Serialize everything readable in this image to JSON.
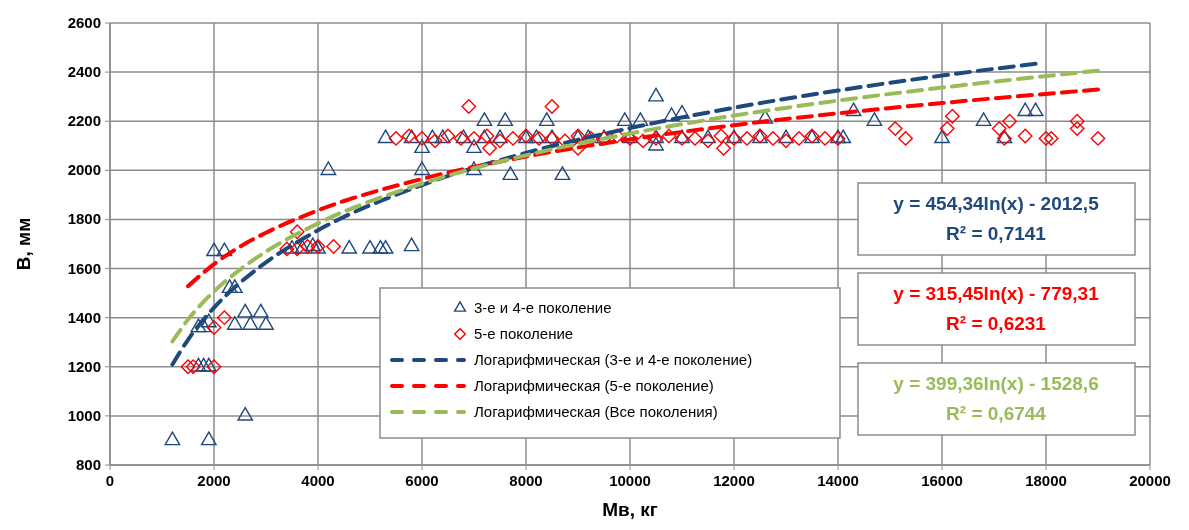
{
  "chart_data": {
    "type": "scatter",
    "xlabel": "Мв, кг",
    "ylabel": "В, мм",
    "xlim": [
      0,
      20000
    ],
    "ylim": [
      800,
      2600
    ],
    "xticks": [
      0,
      2000,
      4000,
      6000,
      8000,
      10000,
      12000,
      14000,
      16000,
      18000,
      20000
    ],
    "yticks": [
      800,
      1000,
      1200,
      1400,
      1600,
      1800,
      2000,
      2200,
      2400,
      2600
    ],
    "grid": true,
    "legend": "bottom",
    "series": [
      {
        "name": "3-е и 4-е поколение",
        "color": "#1f497d",
        "marker": "triangle",
        "x": [
          1200,
          1900,
          2600,
          1700,
          1800,
          1900,
          1700,
          1800,
          1900,
          2000,
          2200,
          2300,
          2400,
          2600,
          2900,
          2400,
          2700,
          3000,
          3500,
          3700,
          3900,
          4000,
          4200,
          4600,
          5000,
          5200,
          5300,
          5800,
          6000,
          7000,
          7700,
          8700,
          5300,
          5800,
          6000,
          6200,
          6400,
          6800,
          7000,
          7200,
          7500,
          8000,
          8200,
          8500,
          9000,
          9200,
          9500,
          10000,
          10500,
          10500,
          11000,
          11500,
          12000,
          12500,
          13000,
          13500,
          14000,
          7200,
          7600,
          8400,
          9900,
          10200,
          10500,
          10800,
          11000,
          12600,
          14300,
          14700,
          14100,
          16000,
          16800,
          17600,
          17800,
          17200
        ],
        "values": [
          900,
          900,
          1000,
          1200,
          1200,
          1200,
          1360,
          1360,
          1380,
          1670,
          1670,
          1520,
          1520,
          1420,
          1420,
          1370,
          1370,
          1370,
          1680,
          1680,
          1690,
          1680,
          2000,
          1680,
          1680,
          1680,
          1680,
          1690,
          2000,
          2000,
          1980,
          1980,
          2130,
          2130,
          2090,
          2130,
          2130,
          2130,
          2090,
          2130,
          2130,
          2130,
          2130,
          2130,
          2130,
          2130,
          2130,
          2130,
          2130,
          2100,
          2130,
          2130,
          2130,
          2130,
          2130,
          2130,
          2130,
          2200,
          2200,
          2200,
          2200,
          2200,
          2300,
          2220,
          2230,
          2210,
          2240,
          2200,
          2130,
          2130,
          2200,
          2240,
          2240,
          2130
        ]
      },
      {
        "name": "5-е поколение",
        "color": "#ff0000",
        "marker": "diamond",
        "x": [
          1500,
          1600,
          2000,
          2000,
          2200,
          3600,
          3400,
          3600,
          3800,
          4000,
          4300,
          6900,
          8500,
          7300,
          9000,
          11800,
          5500,
          5750,
          6000,
          6250,
          6500,
          6750,
          7000,
          7250,
          7500,
          7750,
          8000,
          8250,
          8500,
          8750,
          9000,
          9250,
          9500,
          9750,
          10000,
          10250,
          10500,
          10750,
          11000,
          11250,
          11500,
          11750,
          12000,
          12250,
          12500,
          12750,
          13000,
          13250,
          13500,
          13750,
          14000,
          15100,
          15300,
          16100,
          16200,
          17100,
          17300,
          17200,
          17600,
          18000,
          18100,
          18600,
          18600,
          19000
        ],
        "values": [
          1200,
          1200,
          1200,
          1360,
          1400,
          1750,
          1680,
          1680,
          1690,
          1690,
          1690,
          2260,
          2260,
          2090,
          2090,
          2090,
          2130,
          2140,
          2130,
          2120,
          2140,
          2130,
          2130,
          2140,
          2120,
          2130,
          2140,
          2130,
          2130,
          2120,
          2140,
          2130,
          2130,
          2140,
          2130,
          2120,
          2130,
          2140,
          2130,
          2130,
          2120,
          2140,
          2130,
          2130,
          2140,
          2130,
          2120,
          2130,
          2140,
          2130,
          2130,
          2170,
          2130,
          2170,
          2220,
          2170,
          2200,
          2130,
          2140,
          2130,
          2130,
          2200,
          2170,
          2130
        ]
      },
      {
        "name": "Логарифмическая (3-е и 4-е поколение)",
        "type": "line",
        "line_style": "dashed",
        "color": "#1f497d",
        "x": [
          1200,
          1500,
          2000,
          2500,
          3000,
          4000,
          6000,
          8000,
          10000,
          12000,
          14000,
          16000,
          17800
        ],
        "values": [
          1209,
          1310,
          1441,
          1542,
          1625,
          1756,
          1940,
          2071,
          2172,
          2255,
          2325,
          2386,
          2434
        ]
      },
      {
        "name": "Логарифмическая (5-е поколение)",
        "type": "line",
        "line_style": "dashed",
        "color": "#ff0000",
        "x": [
          1500,
          2000,
          2500,
          3000,
          4000,
          6000,
          8000,
          10000,
          12000,
          14000,
          16000,
          19000
        ],
        "values": [
          1528,
          1618,
          1689,
          1746,
          1837,
          1965,
          2056,
          2126,
          2184,
          2232,
          2274,
          2329
        ]
      },
      {
        "name": "Логарифмическая (Все поколения)",
        "type": "line",
        "line_style": "dashed",
        "color": "#9bbb59",
        "x": [
          1200,
          1500,
          2000,
          2500,
          3000,
          4000,
          6000,
          8000,
          10000,
          12000,
          14000,
          16000,
          19000
        ],
        "values": [
          1303,
          1392,
          1507,
          1596,
          1669,
          1784,
          1946,
          2061,
          2150,
          2223,
          2284,
          2337,
          2406
        ]
      }
    ],
    "annotations": [
      "y = 454,34ln(x) - 2012,5",
      "R² = 0,7141",
      "y = 315,45ln(x) - 779,31",
      "R² = 0,6231",
      "y = 399,36ln(x) - 1528,6",
      "R² = 0,6744"
    ]
  }
}
